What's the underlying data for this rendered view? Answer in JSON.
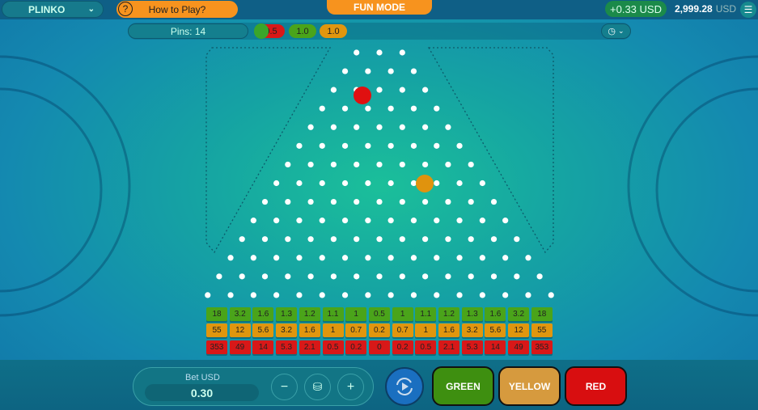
{
  "header": {
    "game_select": "PLINKO",
    "how_to_play": "How to Play?",
    "mode": "FUN MODE",
    "last_win": "+0.33 USD",
    "balance": "2,999.28",
    "currency": "USD"
  },
  "subbar": {
    "pins_label": "Pins: 14",
    "history": [
      {
        "value": "0.5",
        "color": "#d81818"
      },
      {
        "value": "1.0",
        "color": "#4aa41a"
      },
      {
        "value": "1.0",
        "color": "#e8920e"
      }
    ]
  },
  "board": {
    "pin_rows": 14,
    "balls": [
      {
        "color": "#e01010"
      },
      {
        "color": "#e0930e"
      }
    ]
  },
  "multipliers": {
    "colors": {
      "green": "#4aa41a",
      "yellow": "#e0960e",
      "red": "#d81818"
    },
    "green": [
      "18",
      "3.2",
      "1.6",
      "1.3",
      "1.2",
      "1.1",
      "1",
      "0.5",
      "1",
      "1.1",
      "1.2",
      "1.3",
      "1.6",
      "3.2",
      "18"
    ],
    "yellow": [
      "55",
      "12",
      "5.6",
      "3.2",
      "1.6",
      "1",
      "0.7",
      "0.2",
      "0.7",
      "1",
      "1.6",
      "3.2",
      "5.6",
      "12",
      "55"
    ],
    "red": [
      "353",
      "49",
      "14",
      "5.3",
      "2.1",
      "0.5",
      "0.2",
      "0",
      "0.2",
      "0.5",
      "2.1",
      "5.3",
      "14",
      "49",
      "353"
    ]
  },
  "controls": {
    "bet_label": "Bet USD",
    "bet_value": "0.30",
    "minus": "−",
    "plus": "+",
    "green": "GREEN",
    "yellow": "YELLOW",
    "red": "RED"
  }
}
